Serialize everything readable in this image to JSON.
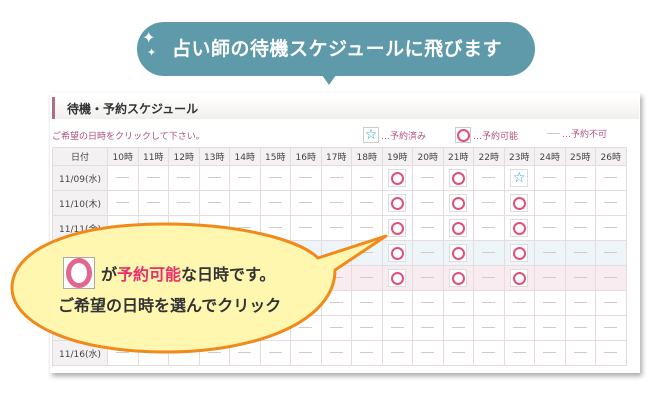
{
  "banner": {
    "text": "占い師の待機スケジュールに飛びます",
    "color": "#5f9aab"
  },
  "panel": {
    "title": "待機・予約スケジュール",
    "notice": "ご希望の日時をクリックして下さい。",
    "legend": {
      "booked": "…予約済み",
      "available": "…予約可能",
      "unavailable": "…予約不可"
    }
  },
  "table": {
    "date_header": "日付",
    "hours": [
      "10時",
      "11時",
      "12時",
      "13時",
      "14時",
      "15時",
      "16時",
      "17時",
      "18時",
      "19時",
      "20時",
      "21時",
      "22時",
      "23時",
      "24時",
      "25時",
      "26時"
    ],
    "rows": [
      {
        "date": "11/09(水)",
        "slots": [
          "-",
          "-",
          "-",
          "-",
          "-",
          "-",
          "-",
          "-",
          "-",
          "o",
          "-",
          "o",
          "-",
          "star",
          "-",
          "-",
          "-"
        ]
      },
      {
        "date": "11/10(木)",
        "slots": [
          "-",
          "-",
          "-",
          "-",
          "-",
          "-",
          "-",
          "-",
          "-",
          "o",
          "-",
          "o",
          "-",
          "o",
          "-",
          "-",
          "-"
        ]
      },
      {
        "date": "11/11(金)",
        "slots": [
          "-",
          "-",
          "-",
          "-",
          "-",
          "-",
          "-",
          "-",
          "-",
          "o",
          "-",
          "o",
          "-",
          "o",
          "-",
          "-",
          "-"
        ]
      },
      {
        "date": "",
        "slots": [
          "-",
          "-",
          "-",
          "-",
          "-",
          "-",
          "-",
          "-",
          "-",
          "o",
          "-",
          "o",
          "-",
          "o",
          "-",
          "-",
          "-"
        ]
      },
      {
        "date": "",
        "slots": [
          "-",
          "-",
          "-",
          "-",
          "-",
          "-",
          "-",
          "-",
          "-",
          "o",
          "-",
          "o",
          "-",
          "o",
          "-",
          "-",
          "-"
        ]
      },
      {
        "date": "",
        "slots": [
          "-",
          "-",
          "-",
          "-",
          "-",
          "-",
          "-",
          "-",
          "-",
          "-",
          "-",
          "-",
          "-",
          "-",
          "-",
          "-",
          "-"
        ]
      },
      {
        "date": "",
        "slots": [
          "-",
          "-",
          "-",
          "-",
          "-",
          "-",
          "-",
          "-",
          "-",
          "-",
          "-",
          "-",
          "-",
          "-",
          "-",
          "-",
          "-"
        ]
      },
      {
        "date": "11/16(水)",
        "slots": [
          "-",
          "-",
          "-",
          "-",
          "-",
          "-",
          "-",
          "-",
          "-",
          "-",
          "-",
          "-",
          "-",
          "-",
          "-",
          "-",
          "-"
        ]
      }
    ]
  },
  "callout": {
    "line1_pre": "が",
    "line1_highlight": "予約可能",
    "line1_post": "な日時です。",
    "line2": "ご希望の日時を選んでクリック",
    "fill": "#fff6b0",
    "stroke": "#f08a1c",
    "highlight_color": "#e8306a"
  }
}
